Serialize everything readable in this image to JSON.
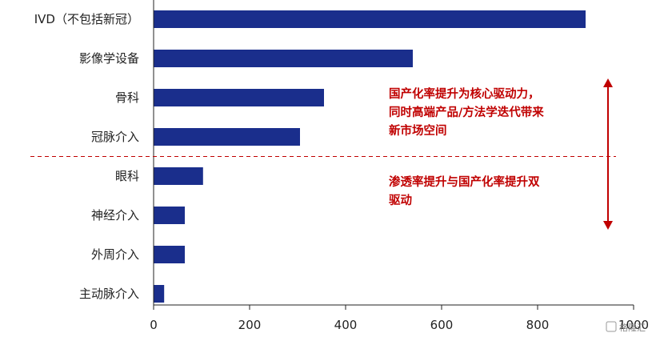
{
  "chart_data": {
    "type": "bar",
    "orientation": "horizontal",
    "categories": [
      "IVD（不包括新冠）",
      "影像学设备",
      "骨科",
      "冠脉介入",
      "眼科",
      "神经介入",
      "外周介入",
      "主动脉介入"
    ],
    "values": [
      900,
      540,
      355,
      305,
      103,
      65,
      65,
      22
    ],
    "xlim": [
      0,
      1000
    ],
    "xticks": [
      0,
      200,
      400,
      600,
      800,
      1000
    ],
    "xtick_labels": [
      "0",
      "200",
      "400",
      "600",
      "800",
      "1000"
    ],
    "bar_color": "#1a2e8c",
    "divider": {
      "between": [
        "冠脉介入",
        "眼科"
      ],
      "style": "dashed",
      "color": "#c00000"
    },
    "annotations": [
      {
        "lines": [
          "国产化率提升为核心驱动力，",
          "同时高端产品/方法学迭代带来",
          "新市场空间"
        ],
        "color": "#c00000"
      },
      {
        "lines": [
          "渗透率提升与国产化率提升双",
          "驱动"
        ],
        "color": "#c00000"
      }
    ],
    "arrow": {
      "direction": "both",
      "color": "#c00000"
    },
    "watermark": "格隆汇"
  }
}
